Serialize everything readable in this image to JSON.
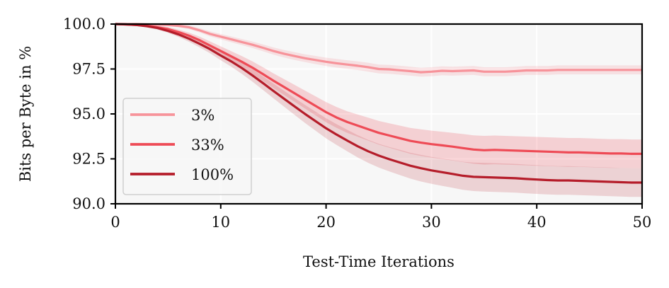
{
  "chart_data": {
    "type": "line",
    "title": "",
    "xlabel": "Test-Time Iterations",
    "ylabel": "Bits per Byte in %",
    "xlim": [
      0,
      50
    ],
    "ylim": [
      90.0,
      100.0
    ],
    "xticks": [
      0,
      10,
      20,
      30,
      40,
      50
    ],
    "xtick_labels": [
      "0",
      "10",
      "20",
      "30",
      "40",
      "50"
    ],
    "yticks": [
      90.0,
      92.5,
      95.0,
      97.5,
      100.0
    ],
    "ytick_labels": [
      "90.0",
      "92.5",
      "95.0",
      "97.5",
      "100.0"
    ],
    "grid": true,
    "legend_position": "lower-left",
    "x": [
      0,
      1,
      2,
      3,
      4,
      5,
      6,
      7,
      8,
      9,
      10,
      11,
      12,
      13,
      14,
      15,
      16,
      17,
      18,
      19,
      20,
      21,
      22,
      23,
      24,
      25,
      26,
      27,
      28,
      29,
      30,
      31,
      32,
      33,
      34,
      35,
      36,
      37,
      38,
      39,
      40,
      41,
      42,
      43,
      44,
      45,
      46,
      47,
      48,
      49,
      50
    ],
    "series": [
      {
        "name": "3%",
        "color": "#f7939a",
        "band_color": "#f7939a",
        "values": [
          100.0,
          100.0,
          100.0,
          99.98,
          99.97,
          99.95,
          99.9,
          99.82,
          99.65,
          99.45,
          99.3,
          99.15,
          99.0,
          98.85,
          98.68,
          98.5,
          98.35,
          98.22,
          98.1,
          98.0,
          97.9,
          97.82,
          97.75,
          97.68,
          97.6,
          97.5,
          97.48,
          97.43,
          97.38,
          97.32,
          97.35,
          97.4,
          97.38,
          97.4,
          97.42,
          97.35,
          97.35,
          97.35,
          97.38,
          97.42,
          97.42,
          97.42,
          97.45,
          97.45,
          97.45,
          97.45,
          97.45,
          97.45,
          97.45,
          97.45,
          97.45
        ],
        "band": [
          0.02,
          0.02,
          0.03,
          0.04,
          0.05,
          0.06,
          0.08,
          0.1,
          0.12,
          0.14,
          0.15,
          0.16,
          0.17,
          0.18,
          0.19,
          0.2,
          0.21,
          0.22,
          0.22,
          0.23,
          0.23,
          0.24,
          0.24,
          0.24,
          0.25,
          0.25,
          0.25,
          0.25,
          0.25,
          0.25,
          0.25,
          0.25,
          0.25,
          0.25,
          0.25,
          0.25,
          0.25,
          0.25,
          0.25,
          0.25,
          0.25,
          0.25,
          0.25,
          0.25,
          0.25,
          0.25,
          0.25,
          0.25,
          0.25,
          0.25,
          0.25
        ]
      },
      {
        "name": "33%",
        "color": "#ee4b56",
        "band_color": "#ee4b56",
        "values": [
          100.0,
          99.98,
          99.95,
          99.9,
          99.82,
          99.72,
          99.55,
          99.35,
          99.1,
          98.8,
          98.5,
          98.2,
          97.9,
          97.58,
          97.22,
          96.85,
          96.5,
          96.15,
          95.8,
          95.45,
          95.1,
          94.8,
          94.55,
          94.35,
          94.15,
          93.95,
          93.8,
          93.65,
          93.5,
          93.4,
          93.32,
          93.25,
          93.18,
          93.1,
          93.02,
          92.98,
          93.0,
          92.98,
          92.96,
          92.94,
          92.92,
          92.9,
          92.88,
          92.86,
          92.86,
          92.84,
          92.82,
          92.8,
          92.8,
          92.78,
          92.78
        ],
        "band": [
          0.02,
          0.03,
          0.05,
          0.07,
          0.09,
          0.11,
          0.14,
          0.17,
          0.2,
          0.23,
          0.26,
          0.29,
          0.32,
          0.35,
          0.38,
          0.41,
          0.44,
          0.47,
          0.5,
          0.53,
          0.56,
          0.58,
          0.6,
          0.62,
          0.64,
          0.66,
          0.68,
          0.7,
          0.72,
          0.74,
          0.75,
          0.76,
          0.77,
          0.78,
          0.79,
          0.8,
          0.8,
          0.8,
          0.8,
          0.8,
          0.8,
          0.8,
          0.8,
          0.8,
          0.8,
          0.8,
          0.8,
          0.8,
          0.8,
          0.8,
          0.8
        ]
      },
      {
        "name": "100%",
        "color": "#b51d2a",
        "band_color": "#c8505a",
        "values": [
          100.0,
          99.98,
          99.95,
          99.88,
          99.78,
          99.62,
          99.42,
          99.18,
          98.9,
          98.6,
          98.25,
          97.92,
          97.55,
          97.15,
          96.72,
          96.28,
          95.85,
          95.42,
          95.0,
          94.6,
          94.2,
          93.85,
          93.52,
          93.2,
          92.92,
          92.68,
          92.48,
          92.3,
          92.12,
          91.98,
          91.86,
          91.76,
          91.66,
          91.56,
          91.5,
          91.48,
          91.46,
          91.44,
          91.42,
          91.38,
          91.35,
          91.32,
          91.3,
          91.3,
          91.28,
          91.26,
          91.24,
          91.22,
          91.2,
          91.18,
          91.18
        ],
        "band": [
          0.02,
          0.03,
          0.05,
          0.07,
          0.09,
          0.11,
          0.14,
          0.17,
          0.2,
          0.23,
          0.26,
          0.29,
          0.32,
          0.35,
          0.38,
          0.41,
          0.44,
          0.47,
          0.5,
          0.53,
          0.56,
          0.58,
          0.6,
          0.62,
          0.64,
          0.66,
          0.68,
          0.7,
          0.72,
          0.74,
          0.75,
          0.76,
          0.77,
          0.78,
          0.79,
          0.8,
          0.8,
          0.8,
          0.8,
          0.8,
          0.8,
          0.8,
          0.8,
          0.8,
          0.8,
          0.8,
          0.8,
          0.8,
          0.8,
          0.8,
          0.8
        ]
      }
    ]
  }
}
